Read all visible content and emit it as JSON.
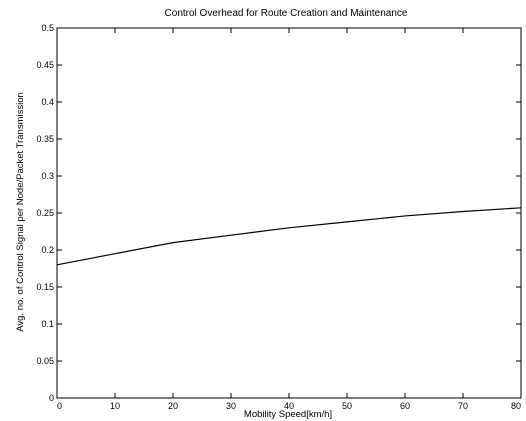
{
  "chart_data": {
    "type": "line",
    "title": "Control Overhead for Route Creation and Maintenance",
    "xlabel": "Mobility Speed[km/h]",
    "ylabel": "Avg. no. of Control Signal per Node/Packet Transmission",
    "xlim": [
      0,
      80
    ],
    "ylim": [
      0,
      0.5
    ],
    "x_ticks": [
      "0",
      "10",
      "20",
      "30",
      "40",
      "50",
      "60",
      "70",
      "80"
    ],
    "y_ticks": [
      "0",
      "0.05",
      "0.1",
      "0.15",
      "0.2",
      "0.25",
      "0.3",
      "0.35",
      "0.4",
      "0.45",
      "0.5"
    ],
    "grid": false,
    "series": [
      {
        "color": "#000000",
        "x": [
          0,
          10,
          20,
          30,
          40,
          50,
          60,
          70,
          80
        ],
        "y": [
          0.18,
          0.195,
          0.21,
          0.22,
          0.23,
          0.238,
          0.246,
          0.252,
          0.257
        ]
      }
    ]
  }
}
